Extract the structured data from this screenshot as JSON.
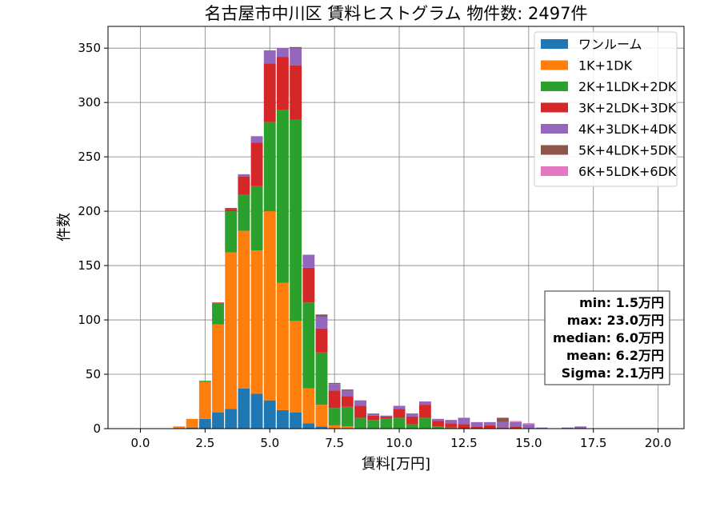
{
  "chart_data": {
    "type": "bar",
    "title": "名古屋市中川区 賃料ヒストグラム 物件数: 2497件",
    "xlabel": "賃料[万円]",
    "ylabel": "件数",
    "xlim": [
      -1.25,
      21.0
    ],
    "ylim": [
      0,
      370
    ],
    "x_ticks": [
      0.0,
      2.5,
      5.0,
      7.5,
      10.0,
      12.5,
      15.0,
      17.5,
      20.0
    ],
    "x_tick_labels": [
      "0.0",
      "2.5",
      "5.0",
      "7.5",
      "10.0",
      "12.5",
      "15.0",
      "17.5",
      "20.0"
    ],
    "y_ticks": [
      0,
      50,
      100,
      150,
      200,
      250,
      300,
      350
    ],
    "y_tick_labels": [
      "0",
      "50",
      "100",
      "150",
      "200",
      "250",
      "300",
      "350"
    ],
    "grid": true,
    "stacked": true,
    "legend_position": "top-right",
    "bin_width": 0.5,
    "x": [
      1.5,
      2.0,
      2.5,
      3.0,
      3.5,
      4.0,
      4.5,
      5.0,
      5.5,
      6.0,
      6.5,
      7.0,
      7.5,
      8.0,
      8.5,
      9.0,
      9.5,
      10.0,
      10.5,
      11.0,
      11.5,
      12.0,
      12.5,
      13.0,
      13.5,
      14.0,
      14.5,
      15.0,
      15.5,
      16.0,
      16.5,
      17.0,
      17.5
    ],
    "series": [
      {
        "name": "ワンルーム",
        "color": "#1f77b4",
        "values": [
          0,
          1,
          9,
          15,
          18,
          37,
          32,
          26,
          17,
          15,
          5,
          2,
          0,
          0,
          0,
          0,
          0,
          0,
          0,
          0,
          0,
          0,
          0,
          0,
          0,
          0,
          0,
          0,
          0,
          0,
          0,
          0,
          0
        ]
      },
      {
        "name": "1K+1DK",
        "color": "#ff7f0e",
        "values": [
          2,
          8,
          34,
          81,
          144,
          145,
          132,
          174,
          117,
          84,
          32,
          20,
          3,
          2,
          0,
          0,
          0,
          0,
          0,
          0,
          0,
          0,
          0,
          0,
          0,
          0,
          0,
          0,
          0,
          0,
          0,
          0,
          0
        ]
      },
      {
        "name": "2K+1LDK+2DK",
        "color": "#2ca02c",
        "values": [
          0,
          0,
          1,
          19,
          38,
          33,
          59,
          82,
          159,
          185,
          79,
          48,
          16,
          18,
          10,
          8,
          9,
          10,
          4,
          10,
          2,
          1,
          0,
          0,
          0,
          0,
          0,
          0,
          0,
          0,
          0,
          0,
          0
        ]
      },
      {
        "name": "3K+2LDK+3DK",
        "color": "#d62728",
        "values": [
          0,
          0,
          0,
          1,
          2,
          17,
          40,
          54,
          49,
          50,
          32,
          22,
          16,
          10,
          11,
          4,
          2,
          8,
          7,
          12,
          5,
          4,
          4,
          2,
          3,
          1,
          2,
          0,
          0,
          0,
          0,
          0,
          0
        ]
      },
      {
        "name": "4K+3LDK+4DK",
        "color": "#9467bd",
        "values": [
          0,
          0,
          0,
          0,
          0,
          2,
          6,
          12,
          8,
          16,
          12,
          11,
          6,
          5,
          5,
          2,
          1,
          3,
          3,
          3,
          2,
          3,
          6,
          4,
          3,
          5,
          4,
          4,
          1,
          0,
          1,
          2,
          0
        ]
      },
      {
        "name": "5K+4LDK+5DK",
        "color": "#8c564b",
        "values": [
          0,
          0,
          0,
          0,
          1,
          0,
          0,
          0,
          0,
          1,
          0,
          2,
          1,
          1,
          0,
          0,
          0,
          0,
          0,
          0,
          0,
          0,
          0,
          0,
          0,
          4,
          0,
          0,
          0,
          0,
          0,
          0,
          0
        ]
      },
      {
        "name": "6K+5LDK+6DK",
        "color": "#e377c2",
        "values": [
          0,
          0,
          0,
          0,
          0,
          0,
          0,
          0,
          0,
          0,
          0,
          0,
          0,
          0,
          0,
          0,
          0,
          0,
          0,
          0,
          0,
          0,
          0,
          0,
          0,
          0,
          1,
          1,
          0,
          0,
          0,
          0,
          0
        ]
      }
    ],
    "stats_box": [
      "min: 1.5万円",
      "max: 23.0万円",
      "median: 6.0万円",
      "mean: 6.2万円",
      "Sigma: 2.1万円"
    ]
  }
}
